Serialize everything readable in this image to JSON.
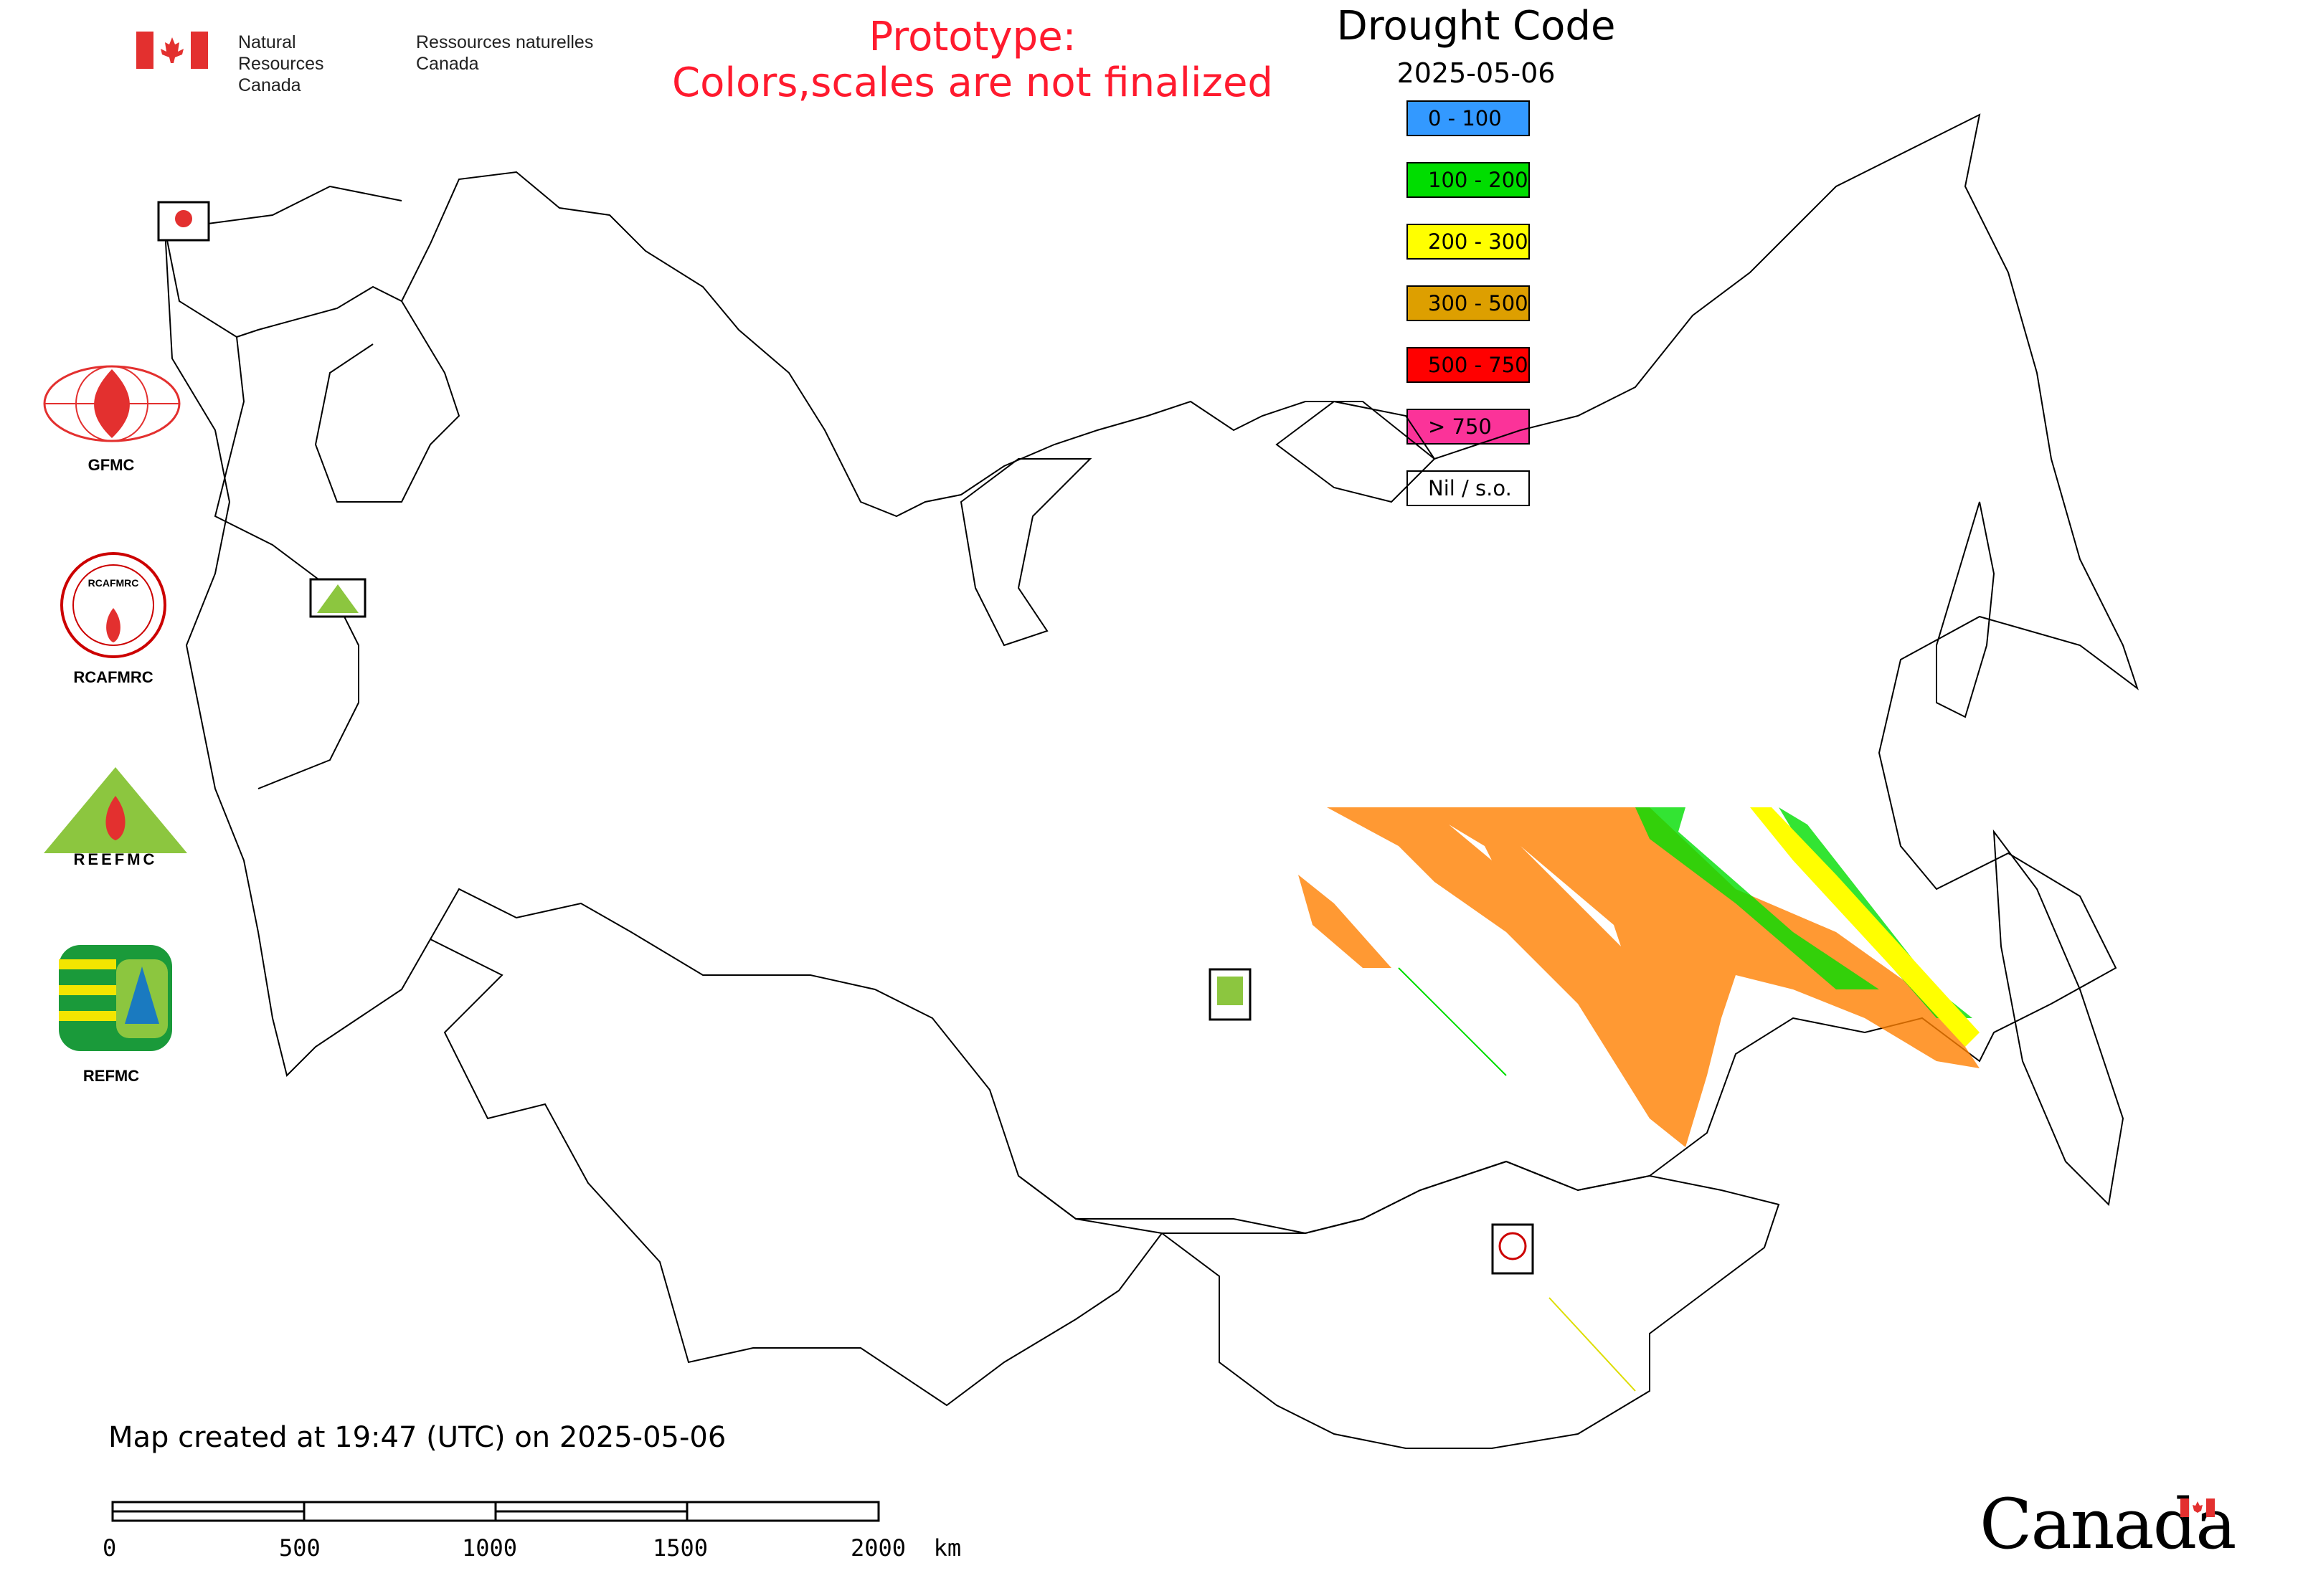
{
  "header": {
    "org_en_line1": "Natural Resources",
    "org_en_line2": "Canada",
    "org_fr_line1": "Ressources naturelles",
    "org_fr_line2": "Canada",
    "prototype_line1": "Prototype:",
    "prototype_line2": "Colors,scales are not finalized"
  },
  "legend": {
    "title": "Drought Code",
    "date": "2025-05-06",
    "items": [
      {
        "label": "0 - 100",
        "color": "#3399ff"
      },
      {
        "label": "100 - 200",
        "color": "#00dd00"
      },
      {
        "label": "200 - 300",
        "color": "#ffff00"
      },
      {
        "label": "300 - 500",
        "color": "#dd9f00"
      },
      {
        "label": "500 - 750",
        "color": "#ff0000"
      },
      {
        "label": "> 750",
        "color": "#fb3399"
      },
      {
        "label": "Nil / s.o.",
        "color": "#ffffff"
      }
    ]
  },
  "logos": {
    "gfmc": "GFMC",
    "rcafmrc": "RCAFMRC",
    "reefmc": "REEFMC",
    "refmc": "REFMC"
  },
  "footer": {
    "created": "Map created at 19:47 (UTC) on 2025-05-06",
    "scale_labels": [
      "0",
      "500",
      "1000",
      "1500",
      "2000  km"
    ],
    "wordmark": "Canada"
  },
  "colors": {
    "data_orange": "#ff8000",
    "data_green": "#00dd00",
    "data_yellow": "#ffff00",
    "prototype_red": "#ff1a2e"
  }
}
